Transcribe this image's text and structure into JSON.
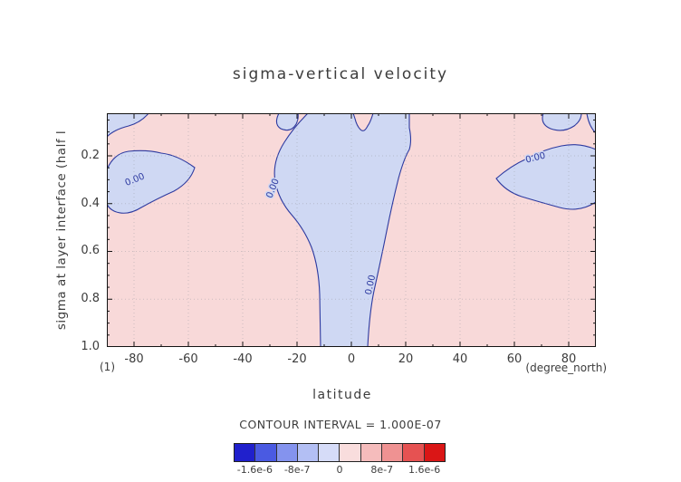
{
  "title": "sigma-vertical velocity",
  "colors": {
    "positive_fill": "#f8d9d9",
    "negative_fill": "#cfd8f3",
    "contour_line": "#2d3aa0",
    "text": "#3c3c3c"
  },
  "axes": {
    "y_label": "sigma at layer interface (half l",
    "y_unit": "(1)",
    "x_label": "latitude",
    "x_unit": "(degree_north)",
    "y_ticks": [
      "0.2",
      "0.4",
      "0.6",
      "0.8",
      "1.0"
    ],
    "x_ticks": [
      "-80",
      "-60",
      "-40",
      "-20",
      "0",
      "20",
      "40",
      "60",
      "80"
    ]
  },
  "contour": {
    "label": "0.00",
    "interval_text": "CONTOUR INTERVAL = 1.000E-07"
  },
  "colorbar": {
    "labels": [
      "-1.6e-6",
      "-8e-7",
      "0",
      "8e-7",
      "1.6e-6"
    ],
    "colors": [
      "#2020cc",
      "#4a5ae2",
      "#8493ee",
      "#b3bff4",
      "#d6dcf8",
      "#f9dddd",
      "#f5bcbc",
      "#ef9292",
      "#e65252",
      "#da1616"
    ]
  },
  "chart_data": {
    "type": "heatmap",
    "subtype": "filled-contour-section",
    "title": "sigma-vertical velocity",
    "xlabel": "latitude (degree_north)",
    "ylabel": "sigma at layer interface (half l) (1)",
    "x_range": [
      -90,
      90
    ],
    "y_range": [
      0.02,
      1.0
    ],
    "y_axis_reversed": true,
    "x_ticks": [
      -80,
      -60,
      -40,
      -20,
      0,
      20,
      40,
      60,
      80
    ],
    "y_ticks": [
      0.2,
      0.4,
      0.6,
      0.8,
      1.0
    ],
    "grid": "dotted",
    "contour_interval": 1e-07,
    "labeled_contour_value": 0,
    "labeled_contour_text": "0.00",
    "labeled_contour_count": 4,
    "colorbar_ticks": [
      -1.6e-06,
      -8e-07,
      0,
      8e-07,
      1.6e-06
    ],
    "colorbar_range": [
      -2e-06,
      2e-06
    ],
    "colorbar_segments": 10,
    "legend_position": "bottom",
    "regions": [
      {
        "sign": "negative",
        "fill": "light blue",
        "extent": "central tongue from top boundary (lat -25 to 27, sigma ~0.02) narrowing with depth to lat -6..10 at sigma 1.0"
      },
      {
        "sign": "negative",
        "fill": "light blue",
        "extent": "southern patch lat -90..-57, sigma ~0.15..0.45, touches left boundary"
      },
      {
        "sign": "negative",
        "fill": "light blue",
        "extent": "northern patch lat 52..90, sigma ~0.13..0.44, touches right boundary"
      },
      {
        "sign": "negative",
        "fill": "light blue",
        "extent": "small patches along top boundary near lat -90, -23, 32..42, 72..88"
      },
      {
        "sign": "positive",
        "fill": "light pink",
        "extent": "remainder of the section (values between 0 and ~+4e-7)"
      }
    ]
  }
}
